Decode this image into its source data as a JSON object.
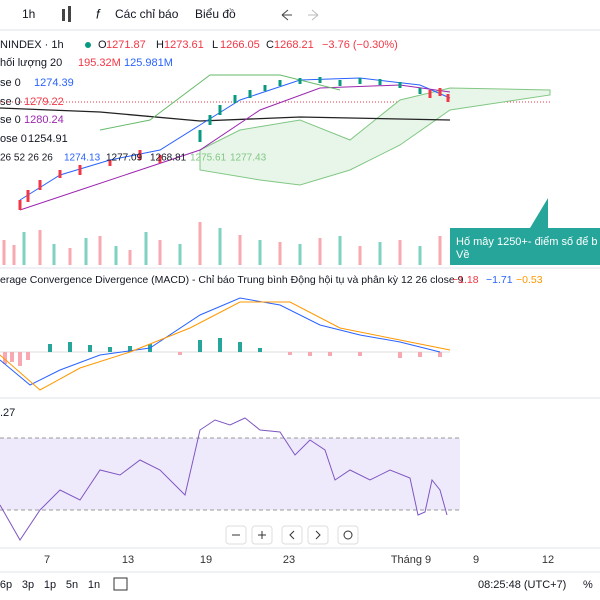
{
  "toolbar": {
    "interval": "1h",
    "indicators": "Các chỉ báo",
    "chart": "Biểu đồ"
  },
  "legend": {
    "symbol": "NINDEX · 1h",
    "open_label": "O",
    "open": "1271.87",
    "high_label": "H",
    "high": "1273.61",
    "low_label": "L",
    "low": "1266.05",
    "close_label": "C",
    "close": "1268.21",
    "change": "−3.76 (−0.30%)",
    "volume": {
      "name": "hối lượng 20",
      "v1": "195.32M",
      "v2": "125.981M"
    },
    "ma": [
      {
        "name": "se 0",
        "value": "1274.39"
      },
      {
        "name": "se 0",
        "value": "1279.22"
      },
      {
        "name": "se 0",
        "value": "1280.24"
      },
      {
        "name": "ose 0",
        "value": "1254.91"
      }
    ],
    "ichimoku": {
      "name": "26 52 26 26",
      "v1": "1274.13",
      "v2": "1277.09",
      "v3": "1268.81",
      "v4": "1275.61",
      "v5": "1277.43"
    }
  },
  "annotation": {
    "line1": "Hố mây 1250+- điểm số để b",
    "line2": "Về"
  },
  "macd": {
    "title": "erage Convergence Divergence (MACD) - Chỉ báo Trung bình Động hội tụ và phân kỳ 12 26 close 9",
    "v1": "−1.18",
    "v2": "−1.71",
    "v3": "−0.53"
  },
  "rsi": {
    "value": ".27"
  },
  "x_axis": [
    "7",
    "13",
    "19",
    "23",
    "Tháng 9",
    "9",
    "12"
  ],
  "bottom": {
    "ranges": [
      "6p",
      "3p",
      "1p",
      "5n",
      "1n"
    ],
    "time": "08:25:48 (UTC+7)",
    "percent": "%"
  }
}
